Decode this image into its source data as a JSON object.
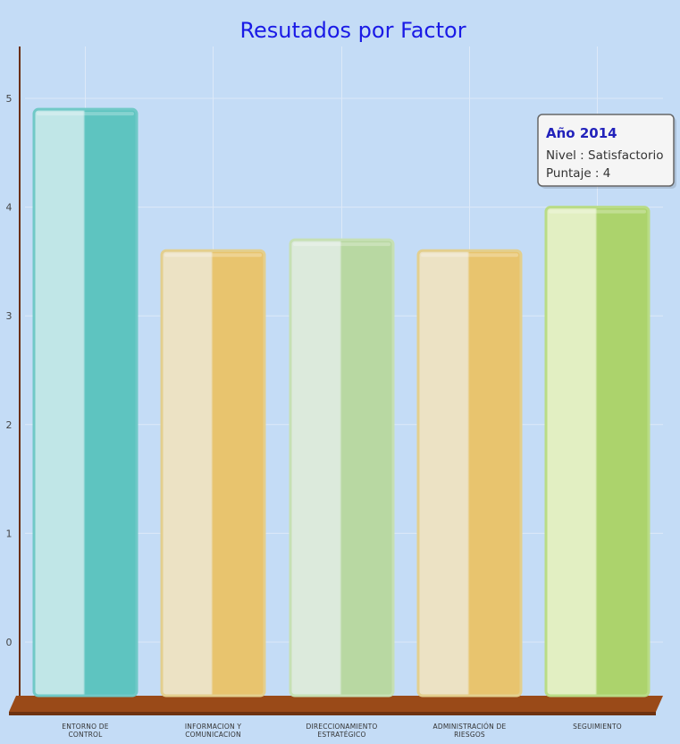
{
  "chart_data": {
    "type": "bar",
    "title": "Resutados por Factor",
    "xlabel": "",
    "ylabel": "",
    "ylim": [
      -0.5,
      5.5
    ],
    "yticks": [
      0,
      1,
      2,
      3,
      4,
      5
    ],
    "grid": true,
    "legend": "none",
    "categories": [
      [
        "ENTORNO DE",
        "CONTROL"
      ],
      [
        "INFORMACION Y",
        "COMUNICACION"
      ],
      [
        "DIRECCIONAMIENTO",
        "ESTRATÉGICO"
      ],
      [
        "ADMINISTRACIÓN DE",
        "RIESGOS"
      ],
      [
        "SEGUIMIENTO"
      ]
    ],
    "values": [
      4.9,
      3.6,
      3.7,
      3.6,
      4.0
    ],
    "bar_colors": [
      "#5ec4c0",
      "#e8c46e",
      "#b8d8a2",
      "#e8c46e",
      "#acd36c"
    ],
    "bar_light_colors": [
      "#c0e6e7",
      "#ece2c4",
      "#dceadc",
      "#ece2c4",
      "#e2efc2"
    ],
    "bar_edge_colors": [
      "#70c9c7",
      "#e3cf8e",
      "#c6e0b4",
      "#e3cf8e",
      "#b9dc86"
    ],
    "background_color": "#c4dcf6",
    "platform_color": "#9a4a18",
    "title_color": "#1a1ae6",
    "tooltip": {
      "title": "Año 2014",
      "lines": [
        "Nivel : Satisfactorio",
        "Puntaje : 4"
      ],
      "category_index": 4
    }
  }
}
